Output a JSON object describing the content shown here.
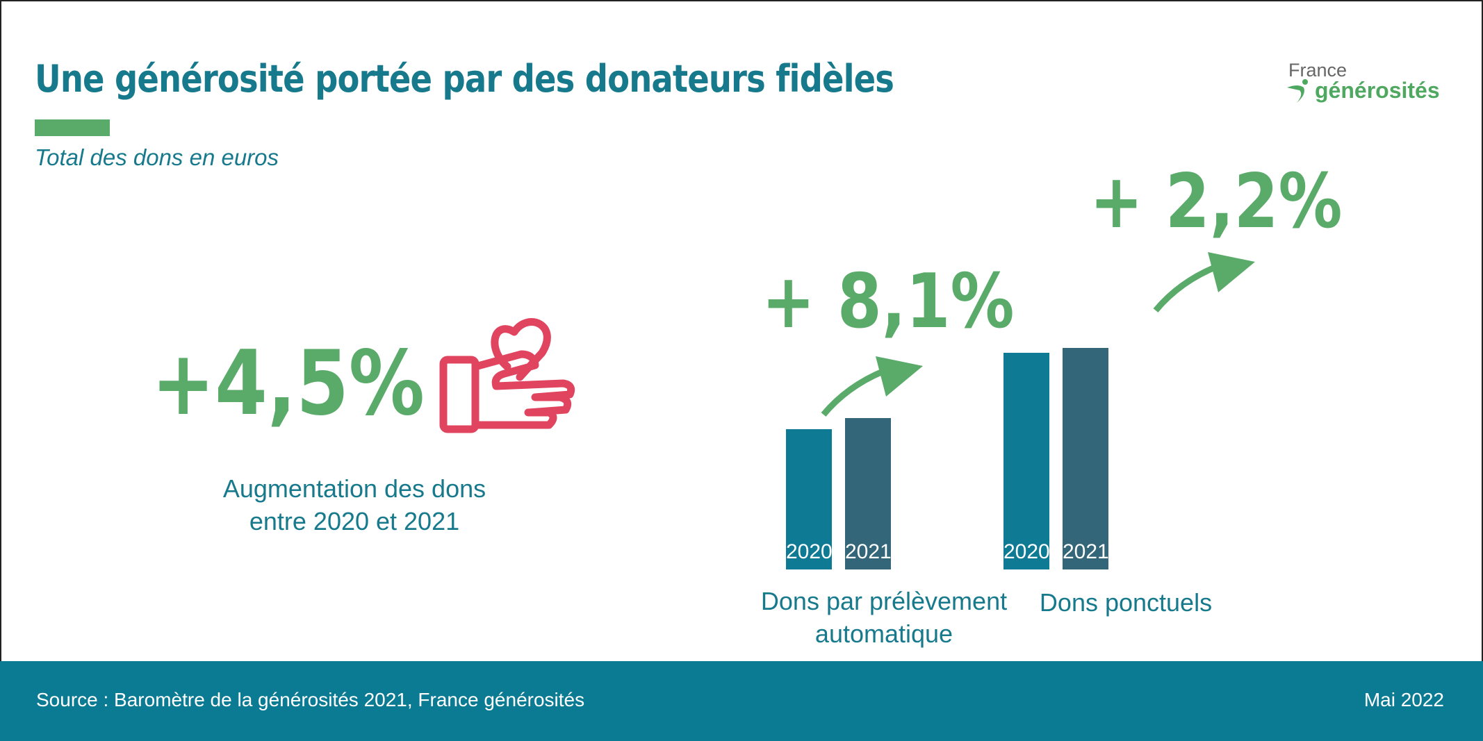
{
  "title": "Une générosité portée par des donateurs fidèles",
  "subtitle": "Total des dons en euros",
  "logo": {
    "line1": "France",
    "line2": "générosités"
  },
  "headline": {
    "value": "+4,5%",
    "description_line1": "Augmentation des dons",
    "description_line2": "entre 2020 et 2021",
    "icon": "hand-giving-heart-icon"
  },
  "colors": {
    "title": "#17798c",
    "green": "#5aab6a",
    "icon": "#e0445f",
    "bar_2020": "#0e7a93",
    "bar_2021": "#336679",
    "footer": "#0b7a93"
  },
  "chart_data": {
    "type": "bar",
    "note_values": "relative heights, Dons par prélèvement automatique 2020 = 100 (no axis printed)",
    "groups": [
      {
        "label_line1": "Dons par prélèvement",
        "label_line2": "automatique",
        "change": "+ 8,1%",
        "categories": [
          "2020",
          "2021"
        ],
        "values": [
          100,
          108.1
        ]
      },
      {
        "label_line1": "Dons ponctuels",
        "label_line2": "",
        "change": "+ 2,2%",
        "categories": [
          "2020",
          "2021"
        ],
        "values": [
          154.5,
          157.9
        ]
      }
    ]
  },
  "footer": {
    "source": "Source : Baromètre de la générosités 2021, France générosités",
    "date": "Mai 2022"
  }
}
